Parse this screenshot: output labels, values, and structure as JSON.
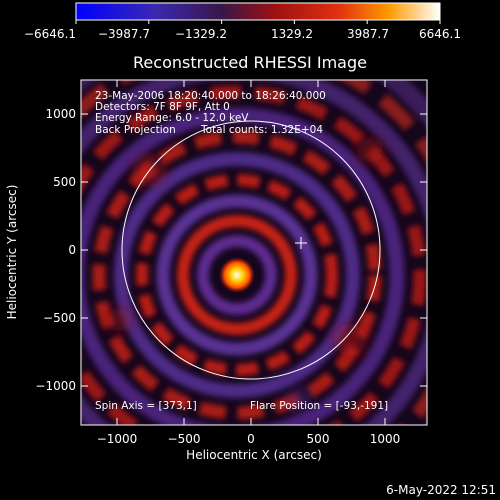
{
  "title": "Reconstructed RHESSI Image",
  "colorbar": {
    "ticks": [
      "−6646.1",
      "−3987.7",
      "−1329.2",
      "1329.2",
      "3987.7",
      "6646.1"
    ]
  },
  "annotations": {
    "time_range": "23-May-2006 18:20:40.000 to 18:26:40.000",
    "detectors": "Detectors: 7F 8F 9F, Att 0",
    "energy_range": "Energy Range: 6.0 - 12.0 keV",
    "method": "Back Projection",
    "total_counts": "Total counts: 1.32E+04",
    "spin_axis": "Spin Axis = [373,1]",
    "flare_position": "Flare Position = [-93,-191]"
  },
  "axes": {
    "xlabel": "Heliocentric X (arcsec)",
    "ylabel": "Heliocentric Y (arcsec)",
    "x_ticks": [
      "−1000",
      "−500",
      "0",
      "500",
      "1000"
    ],
    "y_ticks": [
      "1000",
      "500",
      "0",
      "−500",
      "−1000"
    ]
  },
  "footer_date": "6-May-2022 12:51",
  "colors": {
    "background": "#000000",
    "foreground": "#ffffff",
    "colormap": [
      "#0000ff",
      "#3a2a8a",
      "#1a0a2a",
      "#c01010",
      "#ff8000",
      "#ffffff"
    ]
  }
}
